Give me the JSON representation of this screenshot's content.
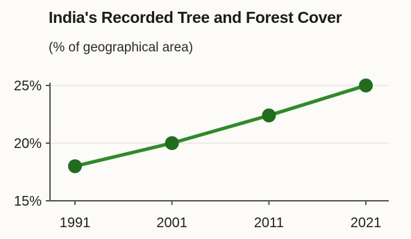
{
  "chart_data": {
    "type": "line",
    "title": "India's Recorded Tree and Forest Cover",
    "subtitle": "(% of geographical area)",
    "xlabel": "",
    "ylabel": "",
    "x": [
      "1991",
      "2001",
      "2011",
      "2021"
    ],
    "series": [
      {
        "values": [
          18.0,
          20.0,
          22.4,
          25.0
        ]
      }
    ],
    "ylim": [
      15,
      25
    ],
    "yticks": [
      15,
      20,
      25
    ],
    "ytick_labels": [
      "15%",
      "20%",
      "25%"
    ],
    "grid": true,
    "legend": "none",
    "colors": {
      "line": "#2f8a2a",
      "marker": "#236b1f",
      "grid": "#e9e6df",
      "axis": "#555555"
    }
  }
}
